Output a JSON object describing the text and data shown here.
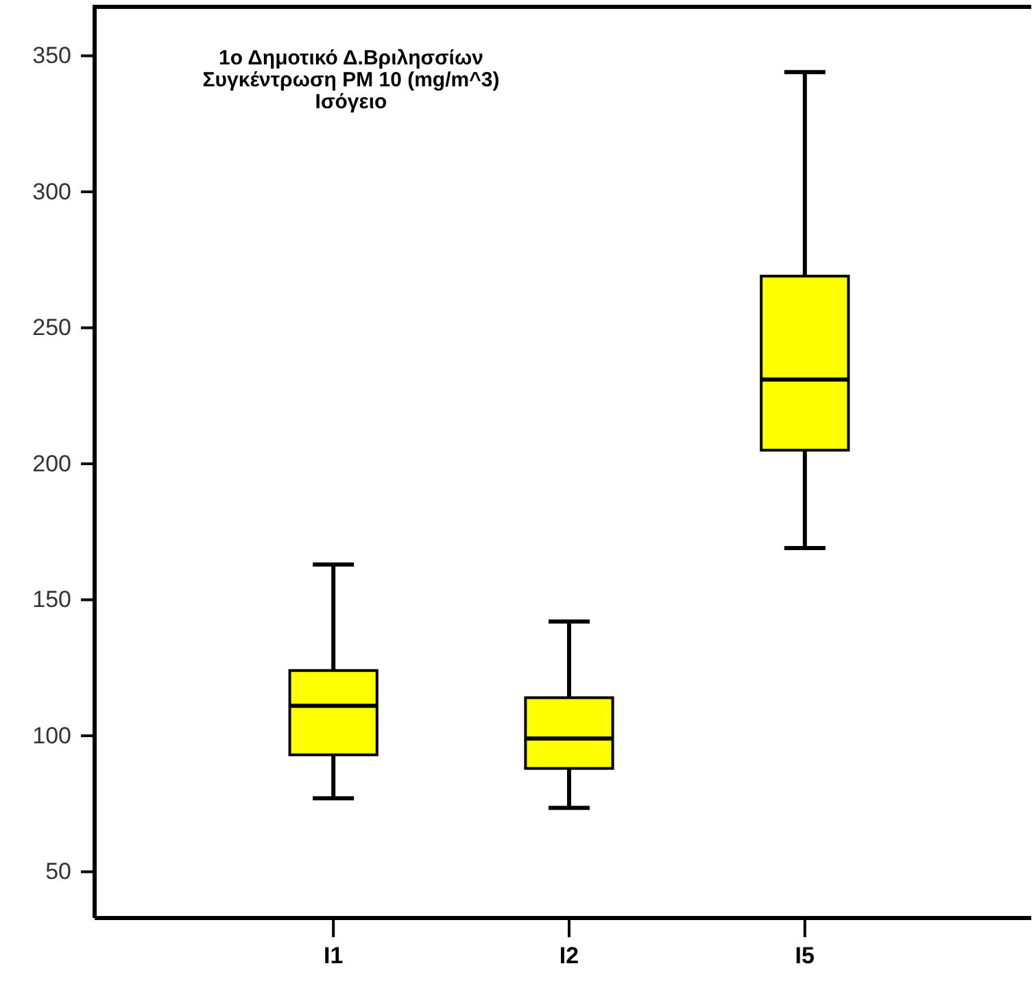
{
  "chart_data": {
    "type": "box",
    "title": "1ο Δημοτικό Δ.Βριλησσίων\nΣυγκέντρωση PM 10 (mg/m^3)\nΙσόγειο",
    "categories": [
      "I1",
      "I2",
      "I5"
    ],
    "color": "#ffff00",
    "boxes": [
      {
        "low": 77,
        "q1": 93,
        "median": 111,
        "q3": 124,
        "high": 163
      },
      {
        "low": 73.5,
        "q1": 88,
        "median": 99,
        "q3": 114,
        "high": 142
      },
      {
        "low": 169,
        "q1": 205,
        "median": 231,
        "q3": 269,
        "high": 344
      }
    ],
    "ylim": [
      33,
      368
    ],
    "yticks": [
      50,
      100,
      150,
      200,
      250,
      300,
      350
    ],
    "grid": false
  }
}
